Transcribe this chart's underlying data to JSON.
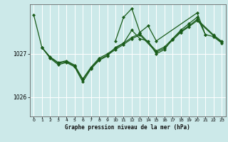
{
  "title": "Graphe pression niveau de la mer (hPa)",
  "bg_color": "#cce9e9",
  "grid_color": "#ffffff",
  "line_color": "#1a5c1a",
  "x_ticks": [
    0,
    1,
    2,
    3,
    4,
    5,
    6,
    7,
    8,
    9,
    10,
    11,
    12,
    13,
    14,
    15,
    16,
    17,
    18,
    19,
    20,
    21,
    22,
    23
  ],
  "y_ticks": [
    1026,
    1027
  ],
  "ylim": [
    1025.55,
    1028.15
  ],
  "xlim": [
    -0.5,
    23.5
  ],
  "lineA_x": [
    0,
    1,
    10,
    11,
    12,
    13,
    14,
    15,
    20,
    21
  ],
  "lineA_y": [
    1027.9,
    1027.15,
    1027.3,
    1027.85,
    1028.05,
    1027.5,
    1027.65,
    1027.3,
    1027.95,
    1027.45
  ],
  "lineB_x": [
    1,
    2,
    3,
    4,
    5,
    6,
    7,
    8,
    9,
    10,
    11,
    12,
    13,
    14,
    15,
    16,
    17,
    18,
    19,
    20,
    21,
    22,
    23
  ],
  "lineB_y": [
    1027.15,
    1026.9,
    1026.75,
    1026.8,
    1026.7,
    1026.35,
    1026.65,
    1026.85,
    1026.95,
    1027.15,
    1027.25,
    1027.55,
    1027.35,
    1027.3,
    1027.0,
    1027.1,
    1027.35,
    1027.55,
    1027.7,
    1027.85,
    1027.45,
    1027.4,
    1027.25
  ],
  "lineC_x": [
    1,
    2,
    3,
    4,
    5,
    6,
    7,
    8,
    9,
    10,
    11,
    12,
    13,
    15,
    16,
    17,
    18,
    19,
    20,
    22,
    23
  ],
  "lineC_y": [
    1027.15,
    1026.92,
    1026.78,
    1026.82,
    1026.72,
    1026.4,
    1026.67,
    1026.87,
    1026.97,
    1027.1,
    1027.22,
    1027.35,
    1027.44,
    1027.04,
    1027.13,
    1027.32,
    1027.5,
    1027.63,
    1027.77,
    1027.42,
    1027.27
  ],
  "lineD_x": [
    1,
    2,
    3,
    4,
    5,
    6,
    7,
    8,
    9,
    10,
    11,
    12,
    13,
    15,
    16,
    17,
    18,
    19,
    20,
    22,
    23
  ],
  "lineD_y": [
    1027.15,
    1026.93,
    1026.8,
    1026.84,
    1026.74,
    1026.42,
    1026.69,
    1026.9,
    1027.0,
    1027.13,
    1027.25,
    1027.38,
    1027.47,
    1027.07,
    1027.16,
    1027.35,
    1027.52,
    1027.65,
    1027.8,
    1027.44,
    1027.29
  ]
}
